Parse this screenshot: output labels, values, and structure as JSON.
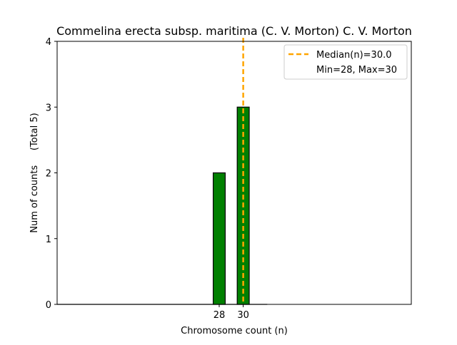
{
  "chart_data": {
    "type": "bar",
    "title": "Commelina erecta subsp. maritima (C. V. Morton) C. V. Morton",
    "xlabel": "Chromosome count (n)",
    "ylabel": "Num of counts     (Total 5)",
    "x": [
      28,
      30
    ],
    "values": [
      2,
      3
    ],
    "xticks": [
      "28",
      "30"
    ],
    "yticks": [
      0,
      1,
      2,
      3,
      4
    ],
    "ylim": [
      0,
      4
    ],
    "xlim": [
      14.5,
      44
    ],
    "bar_width": 0.5,
    "bar_color": "#008000",
    "bar_edge_color": "#000000",
    "median": 30.0,
    "median_color": "#FFA500",
    "legend": {
      "placement": "top-right",
      "entries": [
        "Median(n)=30.0",
        "Min=28, Max=30"
      ]
    }
  }
}
